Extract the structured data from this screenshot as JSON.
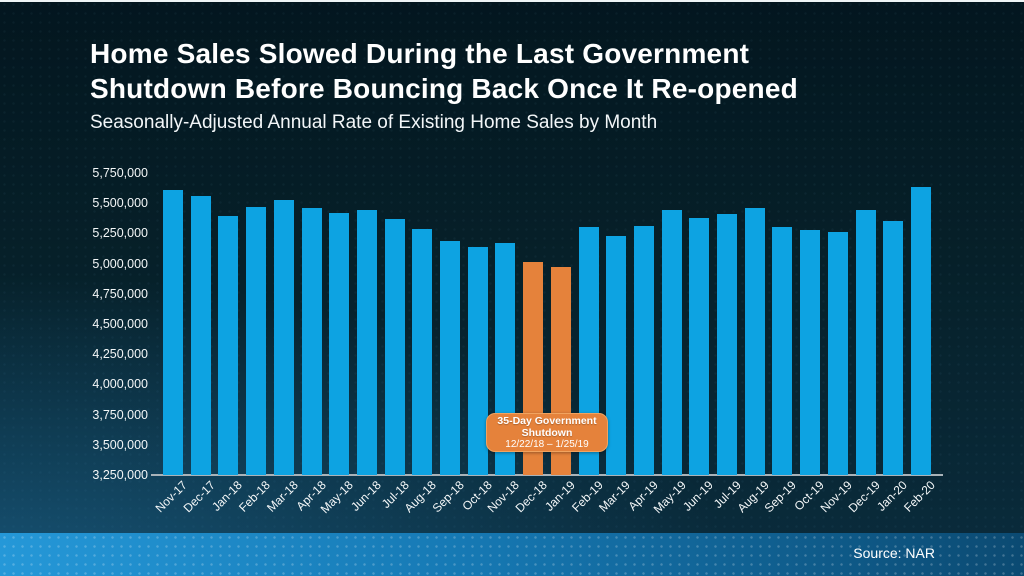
{
  "slide": {
    "title_line1": "Home Sales Slowed During the Last Government",
    "title_line2": "Shutdown Before Bouncing Back Once It Re-opened",
    "subtitle": "Seasonally-Adjusted Annual Rate of Existing Home Sales by Month",
    "source": "Source: NAR"
  },
  "callout": {
    "title_line1": "35-Day Government",
    "title_line2": "Shutdown",
    "dates": "12/22/18 – 1/25/19"
  },
  "colors": {
    "bar_blue": "#0da3e2",
    "bar_orange": "#e5823b",
    "callout_bg": "#e5823b",
    "callout_border": "#f1a35f",
    "axis_line": "#a9b3b9",
    "band_left": "#2598d8",
    "band_right": "#0b4a72",
    "text": "#ffffff",
    "background_dark": "#03161f"
  },
  "chart_data": {
    "type": "bar",
    "title": "Home Sales Slowed During the Last Government Shutdown Before Bouncing Back Once It Re-opened",
    "subtitle": "Seasonally-Adjusted Annual Rate of Existing Home Sales by Month",
    "xlabel": "",
    "ylabel": "",
    "ylim": [
      3250000,
      5750000
    ],
    "ytick_step": 250000,
    "ytick_labels": [
      "5,750,000",
      "5,500,000",
      "5,250,000",
      "5,000,000",
      "4,750,000",
      "4,500,000",
      "4,250,000",
      "4,000,000",
      "3,750,000",
      "3,500,000",
      "3,250,000"
    ],
    "grid": false,
    "legend": false,
    "categories": [
      "Nov-17",
      "Dec-17",
      "Jan-18",
      "Feb-18",
      "Mar-18",
      "Apr-18",
      "May-18",
      "Jun-18",
      "Jul-18",
      "Aug-18",
      "Sep-18",
      "Oct-18",
      "Nov-18",
      "Dec-18",
      "Jan-19",
      "Feb-19",
      "Mar-19",
      "Apr-19",
      "May-19",
      "Jun-19",
      "Jul-19",
      "Aug-19",
      "Sep-19",
      "Oct-19",
      "Nov-19",
      "Dec-19",
      "Jan-20",
      "Feb-20"
    ],
    "values": [
      5610000,
      5560000,
      5390000,
      5470000,
      5530000,
      5460000,
      5420000,
      5440000,
      5370000,
      5290000,
      5190000,
      5140000,
      5170000,
      5010000,
      4970000,
      5300000,
      5230000,
      5310000,
      5440000,
      5380000,
      5410000,
      5460000,
      5300000,
      5280000,
      5260000,
      5440000,
      5350000,
      5630000
    ],
    "highlight_indices": [
      13,
      14
    ],
    "highlight_annotation": "35-Day Government Shutdown 12/22/18 – 1/25/19"
  }
}
